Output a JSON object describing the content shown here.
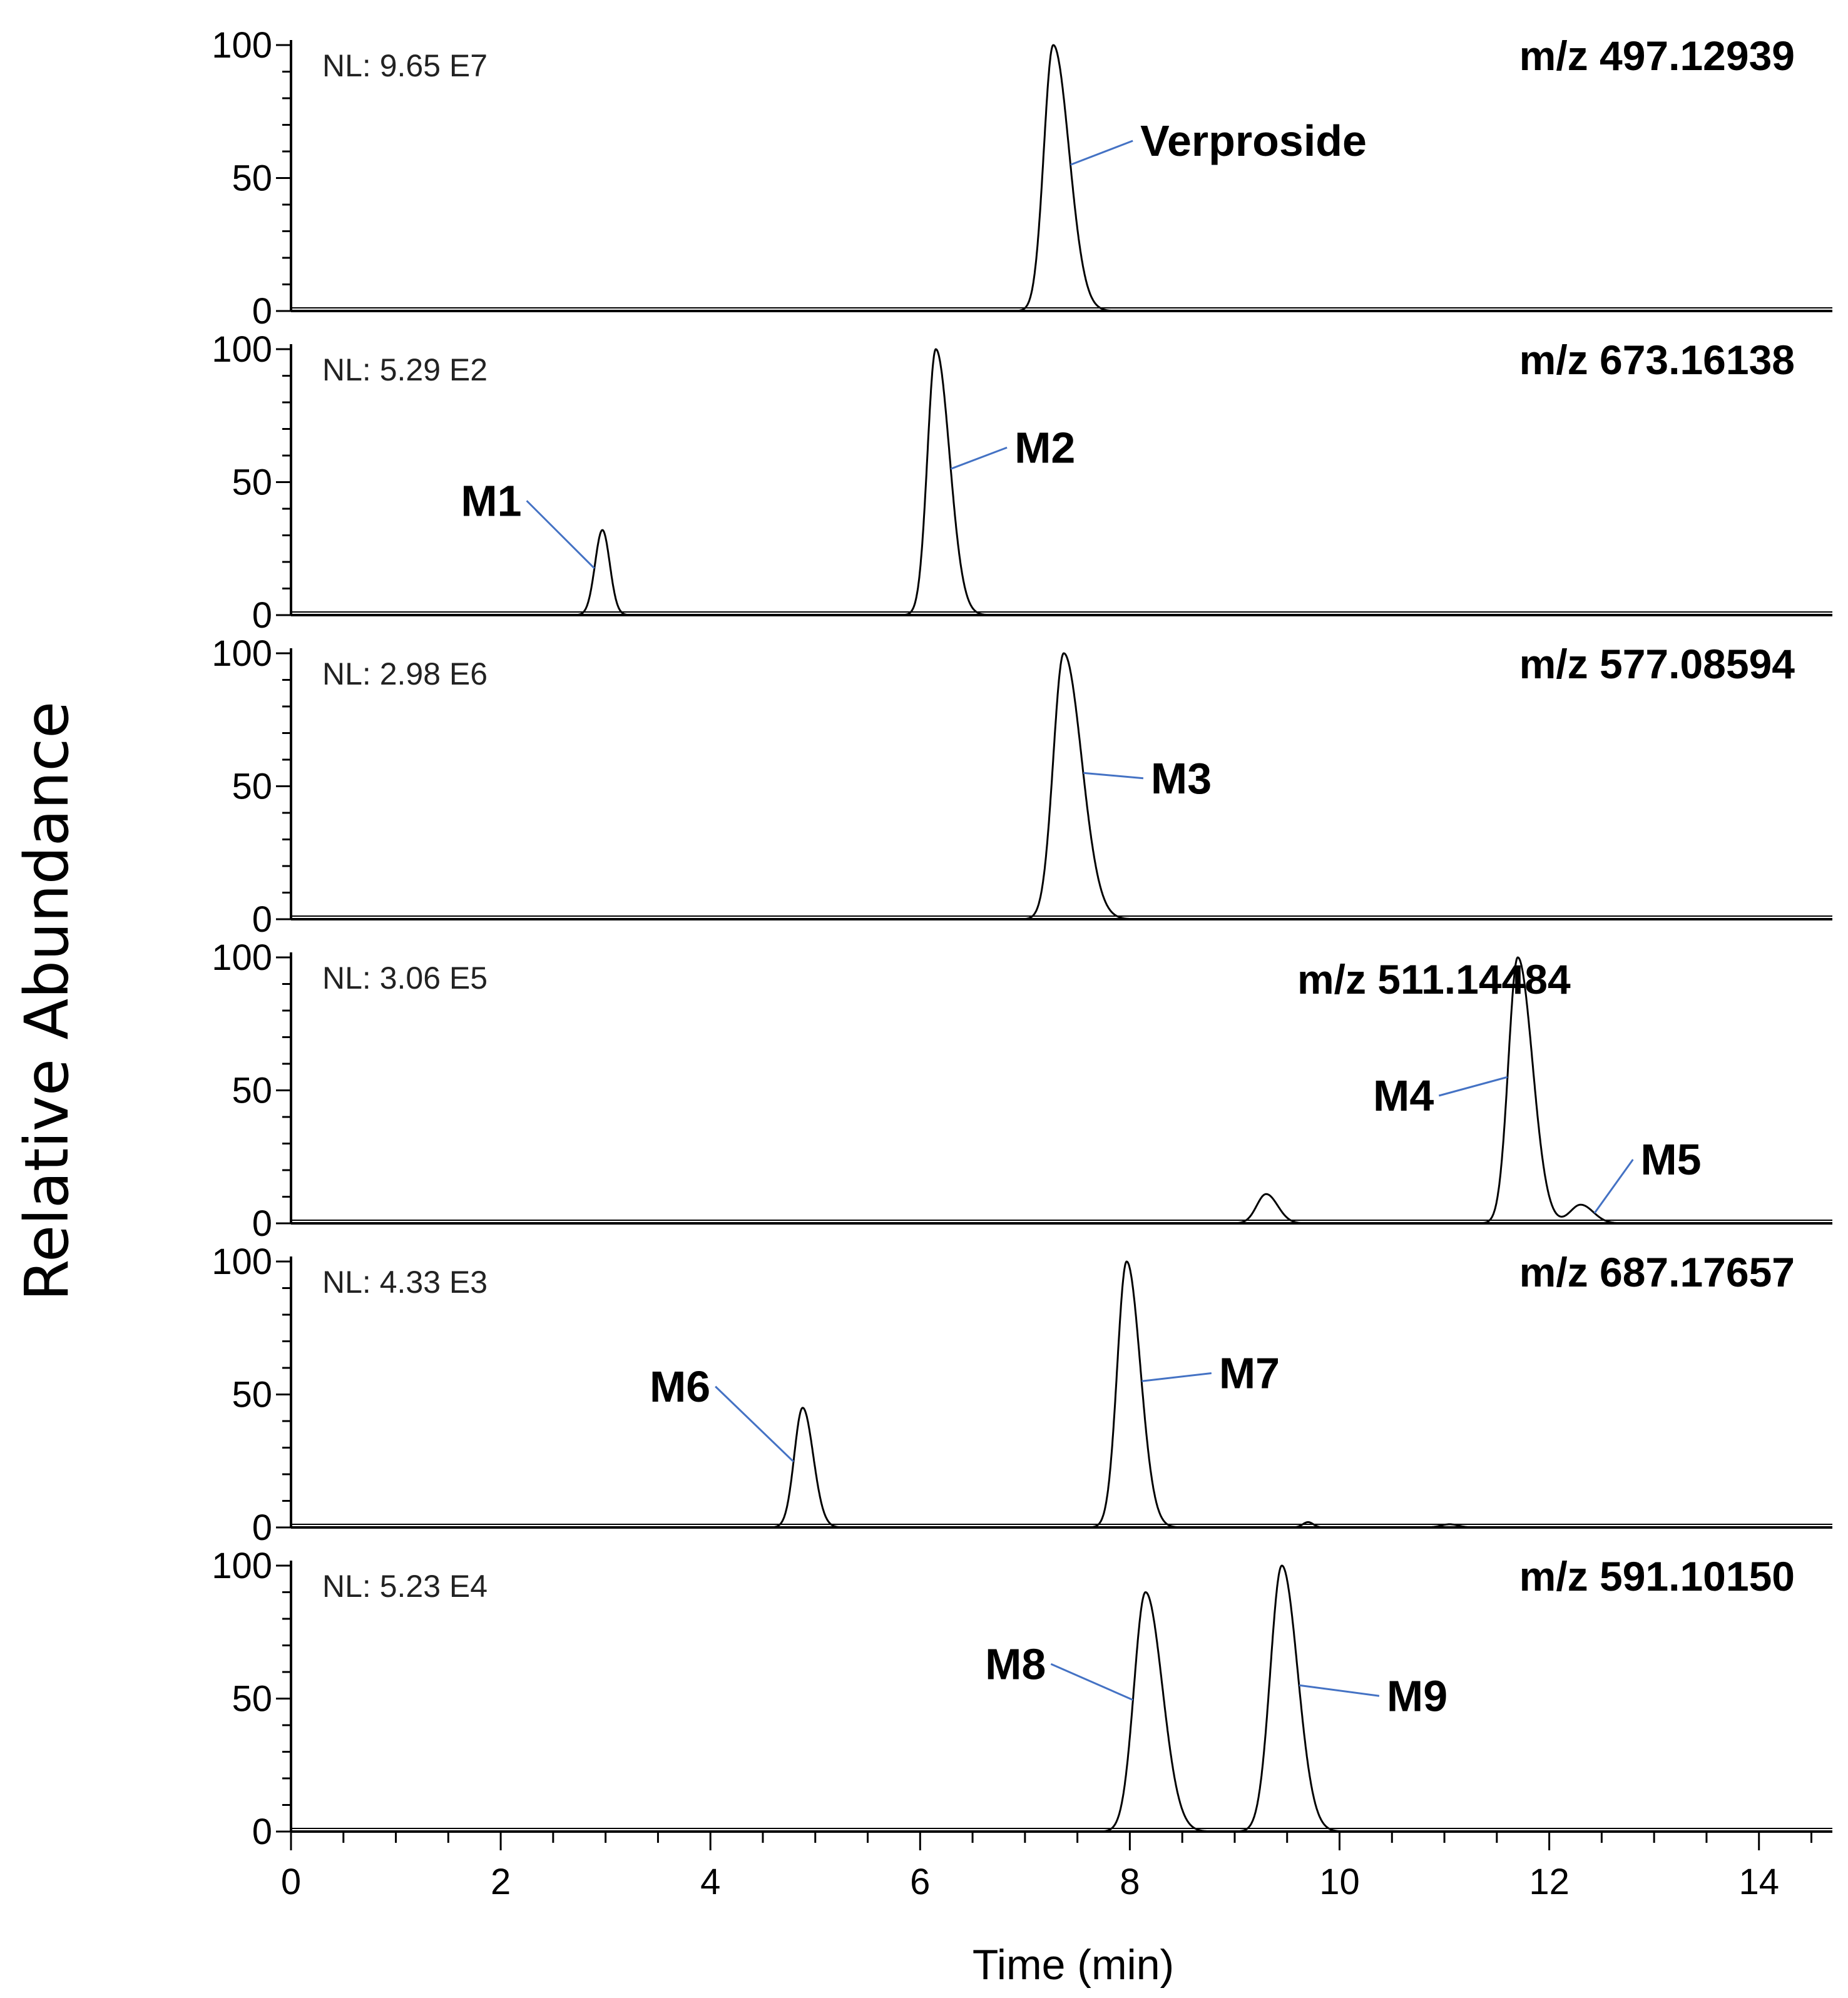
{
  "chart_data": {
    "type": "line",
    "ylabel": "Relative Abundance",
    "xlabel": "Time (min)",
    "xlim": [
      0,
      14.7
    ],
    "ylim": [
      0,
      100
    ],
    "x_ticks": [
      "0",
      "2",
      "4",
      "6",
      "8",
      "10",
      "12",
      "14"
    ],
    "y_ticks": [
      "0",
      "50",
      "100"
    ],
    "label_color": "#4472c4",
    "panels": [
      {
        "nl": "NL: 9.65 E7",
        "mz": "m/z 497.12939",
        "peaks": [
          {
            "rt": 7.27,
            "height": 100,
            "width_left": 0.09,
            "width_right": 0.15,
            "label": "Verproside",
            "label_x": 8.1,
            "label_y": 64
          }
        ]
      },
      {
        "nl": "NL: 5.29 E2",
        "mz": "m/z 673.16138",
        "peaks": [
          {
            "rt": 2.97,
            "height": 32,
            "width_left": 0.07,
            "width_right": 0.07,
            "label": "M1",
            "label_x": 2.2,
            "label_y": 43,
            "label_anchor": "end"
          },
          {
            "rt": 6.15,
            "height": 100,
            "width_left": 0.08,
            "width_right": 0.13,
            "label": "M2",
            "label_x": 6.9,
            "label_y": 63
          }
        ]
      },
      {
        "nl": "NL: 2.98 E6",
        "mz": "m/z 577.08594",
        "peaks": [
          {
            "rt": 7.37,
            "height": 100,
            "width_left": 0.1,
            "width_right": 0.17,
            "label": "M3",
            "label_x": 8.2,
            "label_y": 53
          }
        ]
      },
      {
        "nl": "NL: 3.06 E5",
        "mz": "m/z 511.14484",
        "peaks": [
          {
            "rt": 9.3,
            "height": 11,
            "width_left": 0.09,
            "width_right": 0.11
          },
          {
            "rt": 11.7,
            "height": 100,
            "width_left": 0.09,
            "width_right": 0.14,
            "label": "M4",
            "label_x": 10.9,
            "label_y": 48,
            "label_anchor": "end"
          },
          {
            "rt": 12.3,
            "height": 7,
            "width_left": 0.1,
            "width_right": 0.12,
            "label": "M5",
            "label_x": 12.87,
            "label_y": 24
          }
        ]
      },
      {
        "nl": "NL: 4.33 E3",
        "mz": "m/z 687.17657",
        "peaks": [
          {
            "rt": 4.88,
            "height": 45,
            "width_left": 0.08,
            "width_right": 0.1,
            "label": "M6",
            "label_x": 4.0,
            "label_y": 53,
            "label_anchor": "end"
          },
          {
            "rt": 7.97,
            "height": 100,
            "width_left": 0.09,
            "width_right": 0.13,
            "label": "M7",
            "label_x": 8.85,
            "label_y": 58
          },
          {
            "rt": 9.7,
            "height": 2,
            "width_left": 0.05,
            "width_right": 0.05
          },
          {
            "rt": 11.05,
            "height": 1.2,
            "width_left": 0.08,
            "width_right": 0.08
          }
        ]
      },
      {
        "nl": "NL: 5.23 E4",
        "mz": "m/z 591.10150",
        "peaks": [
          {
            "rt": 8.15,
            "height": 90,
            "width_left": 0.11,
            "width_right": 0.16,
            "label": "M8",
            "label_x": 7.2,
            "label_y": 63,
            "label_anchor": "end"
          },
          {
            "rt": 9.45,
            "height": 100,
            "width_left": 0.11,
            "width_right": 0.15,
            "label": "M9",
            "label_x": 10.45,
            "label_y": 51
          }
        ]
      }
    ]
  }
}
